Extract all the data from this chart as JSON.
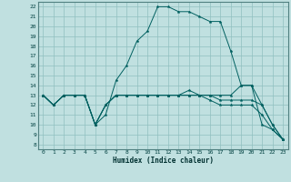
{
  "xlabel": "Humidex (Indice chaleur)",
  "bg_color": "#c0e0e0",
  "grid_color": "#90c0c0",
  "line_color": "#006060",
  "xlim": [
    -0.5,
    23.5
  ],
  "ylim": [
    7.5,
    22.5
  ],
  "yticks": [
    8,
    9,
    10,
    11,
    12,
    13,
    14,
    15,
    16,
    17,
    18,
    19,
    20,
    21,
    22
  ],
  "xticks": [
    0,
    1,
    2,
    3,
    4,
    5,
    6,
    7,
    8,
    9,
    10,
    11,
    12,
    13,
    14,
    15,
    16,
    17,
    18,
    19,
    20,
    21,
    22,
    23
  ],
  "series": [
    [
      13,
      12,
      13,
      13,
      13,
      10,
      11,
      14.5,
      16,
      18.5,
      19.5,
      22,
      22,
      21.5,
      21.5,
      21,
      20.5,
      20.5,
      17.5,
      14,
      14,
      10,
      9.5,
      8.5
    ],
    [
      13,
      12,
      13,
      13,
      13,
      10,
      12,
      13,
      13,
      13,
      13,
      13,
      13,
      13,
      13.5,
      13,
      13,
      13,
      13,
      14,
      14,
      12,
      10,
      8.5
    ],
    [
      13,
      12,
      13,
      13,
      13,
      10,
      12,
      13,
      13,
      13,
      13,
      13,
      13,
      13,
      13,
      13,
      13,
      12.5,
      12.5,
      12.5,
      12.5,
      12,
      10,
      8.5
    ],
    [
      13,
      12,
      13,
      13,
      13,
      10,
      12,
      13,
      13,
      13,
      13,
      13,
      13,
      13,
      13,
      13,
      12.5,
      12,
      12,
      12,
      12,
      11,
      9.5,
      8.5
    ]
  ]
}
